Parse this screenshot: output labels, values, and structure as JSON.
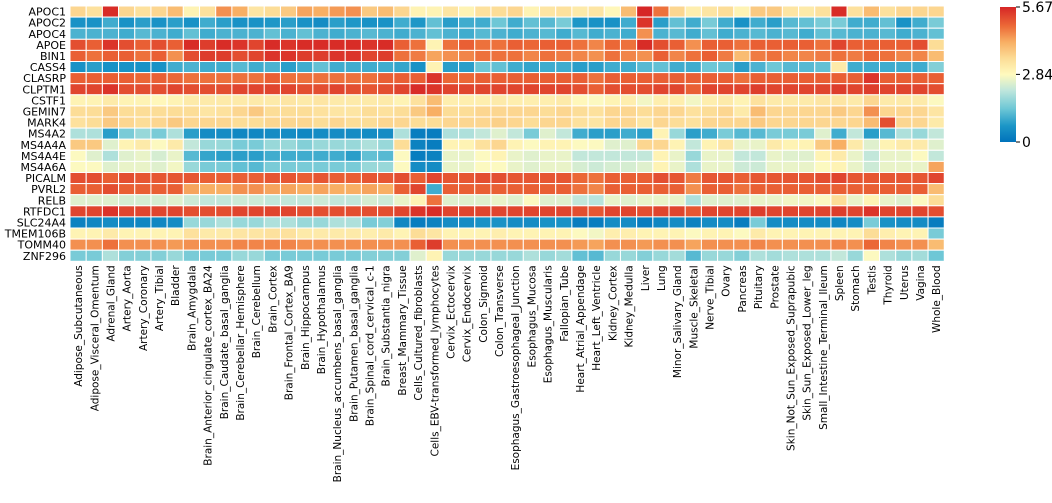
{
  "chart_data": {
    "type": "heatmap",
    "title": "",
    "xlabel": "",
    "ylabel": "",
    "rows": [
      "APOC1",
      "APOC2",
      "APOC4",
      "APOE",
      "BIN1",
      "CASS4",
      "CLASRP",
      "CLPTM1",
      "CSTF1",
      "GEMIN7",
      "MARK4",
      "MS4A2",
      "MS4A4A",
      "MS4A4E",
      "MS4A6A",
      "PICALM",
      "PVRL2",
      "RELB",
      "RTFDC1",
      "SLC24A4",
      "TMEM106B",
      "TOMM40",
      "ZNF296"
    ],
    "columns": [
      "Adipose_Subcutaneous",
      "Adipose_Visceral_Omentum",
      "Adrenal_Gland",
      "Artery_Aorta",
      "Artery_Coronary",
      "Artery_Tibial",
      "Bladder",
      "Brain_Amygdala",
      "Brain_Anterior_cingulate_cortex_BA24",
      "Brain_Caudate_basal_ganglia",
      "Brain_Cerebellar_Hemisphere",
      "Brain_Cerebellum",
      "Brain_Cortex",
      "Brain_Frontal_Cortex_BA9",
      "Brain_Hippocampus",
      "Brain_Hypothalamus",
      "Brain_Nucleus_accumbens_basal_ganglia",
      "Brain_Putamen_basal_ganglia",
      "Brain_Spinal_cord_cervical_c-1",
      "Brain_Substantia_nigra",
      "Breast_Mammary_Tissue",
      "Cells_Cultured_fibroblasts",
      "Cells_EBV-transformed_lymphocytes",
      "Cervix_Ectocervix",
      "Cervix_Endocervix",
      "Colon_Sigmoid",
      "Colon_Transverse",
      "Esophagus_Gastroesophageal_Junction",
      "Esophagus_Mucosa",
      "Esophagus_Muscularis",
      "Fallopian_Tube",
      "Heart_Atrial_Appendage",
      "Heart_Left_Ventricle",
      "Kidney_Cortex",
      "Kidney_Medulla",
      "Liver",
      "Lung",
      "Minor_Salivary_Gland",
      "Muscle_Skeletal",
      "Nerve_Tibial",
      "Ovary",
      "Pancreas",
      "Pituitary",
      "Prostate",
      "Skin_Not_Sun_Exposed_Suprapubic",
      "Skin_Sun_Exposed_Lower_leg",
      "Small_Intestine_Terminal_Ileum",
      "Spleen",
      "Stomach",
      "Testis",
      "Thyroid",
      "Uterus",
      "Vagina",
      "Whole_Blood"
    ],
    "values": [
      [
        3.6,
        3.4,
        5.6,
        3.6,
        3.4,
        3.6,
        4.0,
        3.0,
        3.4,
        4.5,
        4.2,
        3.3,
        3.5,
        3.8,
        4.3,
        4.2,
        4.4,
        4.5,
        3.8,
        4.0,
        3.6,
        3.0,
        3.0,
        3.3,
        3.0,
        3.4,
        3.5,
        3.6,
        3.0,
        3.3,
        3.4,
        3.2,
        3.3,
        2.9,
        4.0,
        5.7,
        4.8,
        3.6,
        3.1,
        3.3,
        3.5,
        3.0,
        3.8,
        3.8,
        3.3,
        3.2,
        3.4,
        5.6,
        3.4,
        4.0,
        3.4,
        3.6,
        3.6,
        3.6
      ],
      [
        0.6,
        0.6,
        1.0,
        0.6,
        0.8,
        0.6,
        0.8,
        0.6,
        1.0,
        0.8,
        0.6,
        0.6,
        0.7,
        0.8,
        0.6,
        0.5,
        0.8,
        0.7,
        0.6,
        0.6,
        1.0,
        0.7,
        1.3,
        0.8,
        1.0,
        1.0,
        1.4,
        1.0,
        1.3,
        1.2,
        1.5,
        0.7,
        0.6,
        0.6,
        1.0,
        5.5,
        0.8,
        1.3,
        1.0,
        1.5,
        1.0,
        0.6,
        1.0,
        0.8,
        1.2,
        1.3,
        1.5,
        1.5,
        1.0,
        1.0,
        1.3,
        0.6,
        1.0,
        1.5
      ],
      [
        1.1,
        1.1,
        1.1,
        1.0,
        1.2,
        1.1,
        1.0,
        1.3,
        1.0,
        1.1,
        1.1,
        1.1,
        1.3,
        1.1,
        1.3,
        1.1,
        1.0,
        1.1,
        1.2,
        1.1,
        1.0,
        1.1,
        1.3,
        1.1,
        1.0,
        1.2,
        1.1,
        1.0,
        1.1,
        1.2,
        1.0,
        1.2,
        1.0,
        1.1,
        1.0,
        4.5,
        1.1,
        1.2,
        1.0,
        1.3,
        1.0,
        1.1,
        1.2,
        1.1,
        1.2,
        1.0,
        1.3,
        1.2,
        1.1,
        1.1,
        1.2,
        1.0,
        1.1,
        1.3
      ],
      [
        5.2,
        5.0,
        5.5,
        5.2,
        5.0,
        5.2,
        5.0,
        5.6,
        5.4,
        5.6,
        5.5,
        5.3,
        5.6,
        5.5,
        5.6,
        5.6,
        5.6,
        5.6,
        5.5,
        5.6,
        5.0,
        4.8,
        3.0,
        4.8,
        5.0,
        4.8,
        4.8,
        5.0,
        4.9,
        5.0,
        5.0,
        4.8,
        4.6,
        4.9,
        4.8,
        5.6,
        5.2,
        5.0,
        4.5,
        5.0,
        5.0,
        4.8,
        5.0,
        5.0,
        5.0,
        5.0,
        4.8,
        5.3,
        5.0,
        5.0,
        5.0,
        5.0,
        5.2,
        3.5
      ],
      [
        5.0,
        4.8,
        5.0,
        5.0,
        4.8,
        5.0,
        4.5,
        5.2,
        5.4,
        5.4,
        5.2,
        5.3,
        5.5,
        5.5,
        5.4,
        5.4,
        5.5,
        5.5,
        5.3,
        5.4,
        4.8,
        4.7,
        4.3,
        4.5,
        4.6,
        4.8,
        4.8,
        4.8,
        4.6,
        4.8,
        4.7,
        4.6,
        4.5,
        4.8,
        4.6,
        4.5,
        5.0,
        4.6,
        4.8,
        5.0,
        4.7,
        4.0,
        4.7,
        4.8,
        4.6,
        4.6,
        4.7,
        4.8,
        4.7,
        4.9,
        4.8,
        4.6,
        4.6,
        4.0
      ],
      [
        0.6,
        0.8,
        0.6,
        0.6,
        0.6,
        0.6,
        1.0,
        1.1,
        1.0,
        1.0,
        1.2,
        1.0,
        1.1,
        0.8,
        1.0,
        1.3,
        1.0,
        1.0,
        1.0,
        1.0,
        0.9,
        0.6,
        3.0,
        0.8,
        0.8,
        1.4,
        1.3,
        1.0,
        0.9,
        1.0,
        1.0,
        0.8,
        0.8,
        1.0,
        1.0,
        1.2,
        1.3,
        1.0,
        1.0,
        1.4,
        1.3,
        0.8,
        1.1,
        1.4,
        1.2,
        1.2,
        1.3,
        3.2,
        1.0,
        1.0,
        1.0,
        1.0,
        1.0,
        1.6
      ],
      [
        5.0,
        5.0,
        5.0,
        5.0,
        4.9,
        5.0,
        4.9,
        4.8,
        4.8,
        4.8,
        4.8,
        4.8,
        5.0,
        4.8,
        4.8,
        4.8,
        4.8,
        4.8,
        4.8,
        5.0,
        5.0,
        5.0,
        5.5,
        4.9,
        4.9,
        5.0,
        5.0,
        5.0,
        5.0,
        5.0,
        5.0,
        5.0,
        4.8,
        5.0,
        5.0,
        5.0,
        5.0,
        5.0,
        5.0,
        5.0,
        5.0,
        4.8,
        5.0,
        5.0,
        5.0,
        5.0,
        5.0,
        5.0,
        5.0,
        5.5,
        5.0,
        5.0,
        5.0,
        5.0
      ],
      [
        5.3,
        5.3,
        5.5,
        5.2,
        5.2,
        5.2,
        5.3,
        5.2,
        5.2,
        5.2,
        5.3,
        5.3,
        5.3,
        5.3,
        5.2,
        5.2,
        5.3,
        5.2,
        5.1,
        5.2,
        5.3,
        5.6,
        5.5,
        5.3,
        5.3,
        5.3,
        5.3,
        5.3,
        5.3,
        5.3,
        5.3,
        5.2,
        5.0,
        5.2,
        5.2,
        5.2,
        5.3,
        5.3,
        5.0,
        5.3,
        5.3,
        5.3,
        5.4,
        5.3,
        5.3,
        5.3,
        5.3,
        5.4,
        5.3,
        5.4,
        5.3,
        5.3,
        5.3,
        5.2
      ],
      [
        3.0,
        3.0,
        3.2,
        3.0,
        3.0,
        2.9,
        3.0,
        3.2,
        3.2,
        3.2,
        3.2,
        3.2,
        3.2,
        3.3,
        3.2,
        3.3,
        3.2,
        3.2,
        3.2,
        3.2,
        3.0,
        3.4,
        4.0,
        3.1,
        3.1,
        3.1,
        3.2,
        3.1,
        3.1,
        3.1,
        3.2,
        2.9,
        2.8,
        3.0,
        3.1,
        2.7,
        3.1,
        3.1,
        2.7,
        3.1,
        3.2,
        3.0,
        3.4,
        3.2,
        3.2,
        3.2,
        3.3,
        3.3,
        3.2,
        3.6,
        3.2,
        3.2,
        3.2,
        2.8
      ],
      [
        3.5,
        3.5,
        3.8,
        3.5,
        3.5,
        3.5,
        3.5,
        3.5,
        3.3,
        3.4,
        3.6,
        3.8,
        3.5,
        3.5,
        3.5,
        3.4,
        3.3,
        3.3,
        3.5,
        3.4,
        3.5,
        3.8,
        4.2,
        3.5,
        3.5,
        3.6,
        3.6,
        3.6,
        3.6,
        3.5,
        3.6,
        3.5,
        3.4,
        3.6,
        3.6,
        3.5,
        3.6,
        3.6,
        3.4,
        3.5,
        3.6,
        3.2,
        4.0,
        3.6,
        3.6,
        3.6,
        3.6,
        3.8,
        3.6,
        4.5,
        3.6,
        3.6,
        3.6,
        3.3
      ],
      [
        3.4,
        3.5,
        3.8,
        3.6,
        3.5,
        3.6,
        3.8,
        3.6,
        3.6,
        3.6,
        3.5,
        3.5,
        3.6,
        3.6,
        3.6,
        3.5,
        3.6,
        3.5,
        3.5,
        3.6,
        3.6,
        3.5,
        3.5,
        3.6,
        3.6,
        3.6,
        3.7,
        3.6,
        3.5,
        3.6,
        3.6,
        3.4,
        3.3,
        3.6,
        3.6,
        3.3,
        3.6,
        3.5,
        3.4,
        3.6,
        3.6,
        3.6,
        3.8,
        3.6,
        3.6,
        3.6,
        3.6,
        3.6,
        3.6,
        4.0,
        5.2,
        3.6,
        3.6,
        3.2
      ],
      [
        2.0,
        2.0,
        0.8,
        1.5,
        1.8,
        1.5,
        2.0,
        0.8,
        0.5,
        0.5,
        0.4,
        0.4,
        0.5,
        0.5,
        0.4,
        0.5,
        0.5,
        0.5,
        0.5,
        0.5,
        2.0,
        0.2,
        0.2,
        2.0,
        2.0,
        2.2,
        2.5,
        2.2,
        1.5,
        2.5,
        2.2,
        1.0,
        0.8,
        0.8,
        1.0,
        0.8,
        3.0,
        1.8,
        0.8,
        1.0,
        1.5,
        1.2,
        1.2,
        1.5,
        1.5,
        1.5,
        2.5,
        1.0,
        2.2,
        0.8,
        1.2,
        2.0,
        1.8,
        2.2
      ],
      [
        3.8,
        3.8,
        2.5,
        3.0,
        3.2,
        2.8,
        3.2,
        2.2,
        1.8,
        1.8,
        1.5,
        1.5,
        1.8,
        1.8,
        1.6,
        1.8,
        1.8,
        1.8,
        2.0,
        1.8,
        3.5,
        0.3,
        0.2,
        3.0,
        3.0,
        3.4,
        3.6,
        3.0,
        2.8,
        3.0,
        3.0,
        2.8,
        2.8,
        2.5,
        2.5,
        3.6,
        3.6,
        3.0,
        2.2,
        3.0,
        3.3,
        2.6,
        2.6,
        3.2,
        3.0,
        3.0,
        3.8,
        4.2,
        3.2,
        2.5,
        3.0,
        3.2,
        3.2,
        2.5
      ],
      [
        2.8,
        2.5,
        2.0,
        2.5,
        2.6,
        2.4,
        2.6,
        1.2,
        0.9,
        0.8,
        0.8,
        0.8,
        1.0,
        1.0,
        1.0,
        1.0,
        1.0,
        0.8,
        1.3,
        1.2,
        2.8,
        0.2,
        0.3,
        2.6,
        2.6,
        2.8,
        3.0,
        2.6,
        2.5,
        2.6,
        2.6,
        2.2,
        2.2,
        2.2,
        2.2,
        2.2,
        3.0,
        2.6,
        1.8,
        2.6,
        2.6,
        2.2,
        2.2,
        2.6,
        2.5,
        2.5,
        3.0,
        3.2,
        2.6,
        2.2,
        2.6,
        2.6,
        2.8,
        2.2
      ],
      [
        2.8,
        2.8,
        2.5,
        2.6,
        2.6,
        2.5,
        2.7,
        1.8,
        1.5,
        1.5,
        1.3,
        1.2,
        1.5,
        1.5,
        1.5,
        1.5,
        1.5,
        1.5,
        1.8,
        1.8,
        2.8,
        0.5,
        0.5,
        2.6,
        2.6,
        2.8,
        2.8,
        2.6,
        2.5,
        2.6,
        2.6,
        2.4,
        2.3,
        2.4,
        2.4,
        2.5,
        3.0,
        2.6,
        2.0,
        2.6,
        2.6,
        2.3,
        2.3,
        2.6,
        2.6,
        2.6,
        2.8,
        3.0,
        2.6,
        2.3,
        2.6,
        2.6,
        2.6,
        4.3
      ],
      [
        5.2,
        5.2,
        5.0,
        5.2,
        5.1,
        5.1,
        5.1,
        5.1,
        5.0,
        5.0,
        5.0,
        5.0,
        5.1,
        5.1,
        5.0,
        5.1,
        5.0,
        5.0,
        5.1,
        5.1,
        5.2,
        5.0,
        5.3,
        5.1,
        5.1,
        5.2,
        5.2,
        5.1,
        5.1,
        5.1,
        5.1,
        4.9,
        4.8,
        5.0,
        5.0,
        5.0,
        5.2,
        5.1,
        4.7,
        5.1,
        5.1,
        5.0,
        5.1,
        5.1,
        5.1,
        5.1,
        5.2,
        5.3,
        5.1,
        5.1,
        5.1,
        5.1,
        5.1,
        5.3
      ],
      [
        5.0,
        5.0,
        5.2,
        5.0,
        5.0,
        5.0,
        5.0,
        4.3,
        4.2,
        4.2,
        4.5,
        4.5,
        4.3,
        4.3,
        4.2,
        4.3,
        4.2,
        4.2,
        4.3,
        4.2,
        5.0,
        5.3,
        1.0,
        5.0,
        5.0,
        5.0,
        5.0,
        5.0,
        5.0,
        5.0,
        5.0,
        4.8,
        4.6,
        5.0,
        5.0,
        5.0,
        5.0,
        5.0,
        4.5,
        5.0,
        5.0,
        4.8,
        5.0,
        5.0,
        5.0,
        5.0,
        5.0,
        5.0,
        5.0,
        5.0,
        5.0,
        5.0,
        5.0,
        4.0
      ],
      [
        2.5,
        2.5,
        2.5,
        2.4,
        2.4,
        2.4,
        2.5,
        2.3,
        2.2,
        2.2,
        2.3,
        2.3,
        2.2,
        2.2,
        2.2,
        2.3,
        2.2,
        2.2,
        2.4,
        2.3,
        2.6,
        3.0,
        4.8,
        2.5,
        2.5,
        2.5,
        2.6,
        2.5,
        2.8,
        2.5,
        2.5,
        2.2,
        2.1,
        2.6,
        2.5,
        2.6,
        2.6,
        2.6,
        2.0,
        2.5,
        2.5,
        2.5,
        2.6,
        2.6,
        2.7,
        2.7,
        2.8,
        3.5,
        2.6,
        3.0,
        2.6,
        2.5,
        2.8,
        3.5
      ],
      [
        5.3,
        5.3,
        5.5,
        5.3,
        5.3,
        5.3,
        5.3,
        5.2,
        5.2,
        5.2,
        5.3,
        5.3,
        5.3,
        5.3,
        5.2,
        5.2,
        5.2,
        5.2,
        5.2,
        5.2,
        5.3,
        5.5,
        5.6,
        5.3,
        5.3,
        5.3,
        5.3,
        5.3,
        5.3,
        5.3,
        5.3,
        5.2,
        5.1,
        5.3,
        5.3,
        5.2,
        5.3,
        5.3,
        5.1,
        5.3,
        5.3,
        5.3,
        5.4,
        5.3,
        5.3,
        5.3,
        5.3,
        5.4,
        5.3,
        5.5,
        5.3,
        5.3,
        5.3,
        5.2
      ],
      [
        0.3,
        0.4,
        0.5,
        0.4,
        0.4,
        0.4,
        0.5,
        1.8,
        1.8,
        2.0,
        1.8,
        1.8,
        2.0,
        2.0,
        1.8,
        1.8,
        2.0,
        2.0,
        1.5,
        1.6,
        0.4,
        0.2,
        0.3,
        0.5,
        0.5,
        0.6,
        0.6,
        0.5,
        0.5,
        0.6,
        0.6,
        0.2,
        0.2,
        0.5,
        0.5,
        0.2,
        0.4,
        0.5,
        0.3,
        0.5,
        0.5,
        0.2,
        1.5,
        0.5,
        0.5,
        0.5,
        0.5,
        0.4,
        0.5,
        1.5,
        0.6,
        0.5,
        0.5,
        0.2
      ],
      [
        3.0,
        3.0,
        3.2,
        3.0,
        3.0,
        3.0,
        3.0,
        3.4,
        3.2,
        3.2,
        3.3,
        3.3,
        3.4,
        3.4,
        3.2,
        3.2,
        3.2,
        3.2,
        3.1,
        3.2,
        3.0,
        3.5,
        3.3,
        3.0,
        3.0,
        3.0,
        3.1,
        3.0,
        3.0,
        3.0,
        3.0,
        2.8,
        2.7,
        3.1,
        3.1,
        3.0,
        3.0,
        3.0,
        2.8,
        3.0,
        3.0,
        2.8,
        3.2,
        3.0,
        3.0,
        3.0,
        3.0,
        3.0,
        3.0,
        3.5,
        3.1,
        3.0,
        3.0,
        1.5
      ],
      [
        4.5,
        4.5,
        4.8,
        4.5,
        4.5,
        4.5,
        4.4,
        4.5,
        4.5,
        4.5,
        4.6,
        4.6,
        4.6,
        4.6,
        4.5,
        4.5,
        4.5,
        4.5,
        4.5,
        4.5,
        4.5,
        5.0,
        5.4,
        4.5,
        4.5,
        4.5,
        4.5,
        4.5,
        4.5,
        4.5,
        4.5,
        4.4,
        4.3,
        4.5,
        4.5,
        4.4,
        4.5,
        4.5,
        4.3,
        4.5,
        4.5,
        4.5,
        4.6,
        4.5,
        4.5,
        4.5,
        4.5,
        4.6,
        4.5,
        4.9,
        4.6,
        4.5,
        4.5,
        4.0
      ],
      [
        1.5,
        1.5,
        2.0,
        1.6,
        1.6,
        1.6,
        1.8,
        1.5,
        1.5,
        1.5,
        1.8,
        1.8,
        1.5,
        1.5,
        1.5,
        1.5,
        1.5,
        1.5,
        1.6,
        1.6,
        1.6,
        2.5,
        3.0,
        1.8,
        1.8,
        1.8,
        1.8,
        1.8,
        2.0,
        1.8,
        1.9,
        1.3,
        1.2,
        1.8,
        1.8,
        1.6,
        1.8,
        1.9,
        1.2,
        1.8,
        1.8,
        1.6,
        2.0,
        1.9,
        2.0,
        2.0,
        2.0,
        2.2,
        1.8,
        2.8,
        2.0,
        1.8,
        1.9,
        1.4
      ]
    ],
    "vmin": 0,
    "vmax": 5.67,
    "colormap": "RdYlBu_r",
    "colorbar": {
      "ticks": [
        0,
        2.84,
        5.67
      ],
      "tick_labels": [
        "0",
        "2.84",
        "5.67"
      ]
    }
  }
}
